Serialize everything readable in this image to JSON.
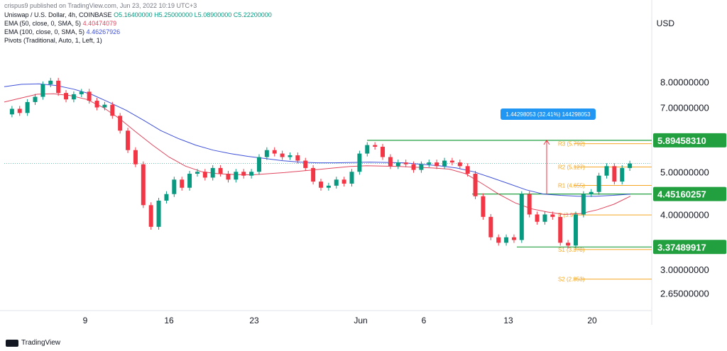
{
  "header": {
    "published": "crispus9 published on TradingView.com, Jun 23, 2022 10:19 UTC+3",
    "symbol_line": "Uniswap / U.S. Dollar, 4h, COINBASE",
    "ohlc": "O5.16400000 H5.25000000 L5.08900000 C5.22200000",
    "ema50": "EMA (50, close, 0, SMA, 5)",
    "ema50_val": "4.40474079",
    "ema100": "EMA (100, close, 0, SMA, 5)",
    "ema100_val": "4.46267926",
    "pivots": "Pivots (Traditional, Auto, 1, Left, 1)"
  },
  "currency": "USD",
  "branding": "TradingView",
  "colors": {
    "up": "#089981",
    "down": "#f23645",
    "ema50": "#e0465e",
    "ema100": "#3f51d9",
    "pivot": "#f5a623",
    "level": "#22a040",
    "badge": "#2196f3",
    "measure": "#f23645"
  },
  "chart_data": {
    "type": "candlestick",
    "timeframe": "4h",
    "x_ticks": [
      "9",
      "16",
      "23",
      "Jun",
      "6",
      "13",
      "20"
    ],
    "y_ticks": [
      "8.00000000",
      "7.00000000",
      "5.00000000",
      "4.00000000",
      "3.00000000",
      "2.65000000"
    ],
    "y_scale": "log",
    "ylim": [
      2.42,
      9.4
    ],
    "horizontal_levels": [
      {
        "label": "5.89458310",
        "value": 5.8945831
      },
      {
        "label": "4.45160257",
        "value": 4.45160257
      },
      {
        "label": "3.37489917",
        "value": 3.37489917
      }
    ],
    "pivot_levels": [
      {
        "label": "R3 (5.792)",
        "value": 5.792
      },
      {
        "label": "R2 (5.127)",
        "value": 5.127
      },
      {
        "label": "R1 (4.655)",
        "value": 4.655
      },
      {
        "label": "P (3.99)",
        "value": 3.99
      },
      {
        "label": "S1 (3.3?8)",
        "value": 3.33
      },
      {
        "label": "S2 (2.853)",
        "value": 2.853
      }
    ],
    "measure_label": "1.44298053 (32.41%) 144298053",
    "last_price": 5.222,
    "price_path": [
      6.75,
      6.95,
      6.8,
      7.2,
      7.4,
      7.9,
      8.05,
      7.55,
      7.3,
      7.5,
      7.6,
      7.25,
      7.0,
      7.1,
      6.7,
      6.2,
      5.6,
      5.2,
      4.2,
      3.75,
      4.3,
      4.45,
      4.8,
      4.6,
      4.95,
      5.0,
      4.85,
      5.1,
      4.95,
      4.8,
      5.0,
      4.9,
      5.0,
      5.4,
      5.6,
      5.5,
      5.4,
      5.45,
      5.3,
      5.1,
      4.75,
      4.6,
      4.65,
      4.8,
      4.7,
      5.0,
      5.5,
      5.75,
      5.7,
      5.4,
      5.15,
      5.25,
      5.2,
      5.05,
      5.2,
      5.25,
      5.15,
      5.3,
      5.25,
      5.15,
      4.95,
      4.4,
      3.95,
      3.55,
      3.45,
      3.55,
      3.5,
      4.45,
      4.0,
      3.85,
      4.0,
      3.95,
      3.45,
      3.4,
      4.0,
      4.45,
      4.5,
      4.9,
      5.15,
      4.75,
      5.1,
      5.22
    ],
    "ema50_path": [
      7.2,
      7.35,
      7.5,
      7.52,
      7.45,
      7.3,
      7.0,
      6.6,
      6.15,
      5.75,
      5.4,
      5.15,
      5.0,
      4.95,
      4.93,
      4.92,
      4.95,
      4.98,
      5.02,
      5.06,
      5.1,
      5.14,
      5.16,
      5.15,
      5.14,
      5.12,
      5.1,
      5.07,
      4.95,
      4.7,
      4.45,
      4.25,
      4.12,
      4.05,
      4.0,
      4.02,
      4.1,
      4.22,
      4.4
    ],
    "ema100_path": [
      7.8,
      7.9,
      7.92,
      7.85,
      7.7,
      7.5,
      7.2,
      6.9,
      6.55,
      6.2,
      5.95,
      5.75,
      5.6,
      5.5,
      5.42,
      5.36,
      5.3,
      5.26,
      5.24,
      5.24,
      5.25,
      5.26,
      5.25,
      5.24,
      5.2,
      5.16,
      5.1,
      5.0,
      4.85,
      4.7,
      4.55,
      4.45,
      4.42,
      4.4,
      4.4,
      4.42,
      4.45
    ]
  }
}
